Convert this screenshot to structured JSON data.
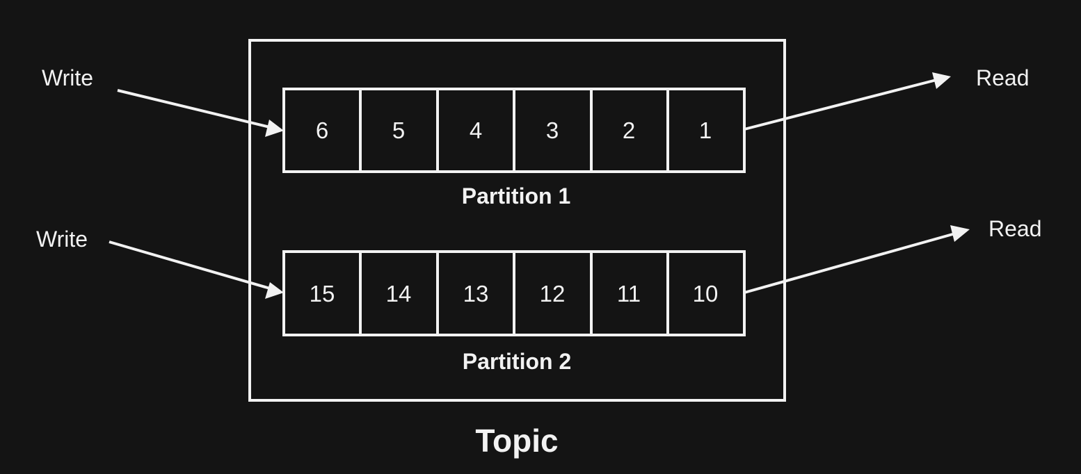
{
  "topic": {
    "title": "Topic"
  },
  "partitions": [
    {
      "title": "Partition 1",
      "cells": [
        "6",
        "5",
        "4",
        "3",
        "2",
        "1"
      ],
      "write_label": "Write",
      "read_label": "Read"
    },
    {
      "title": "Partition 2",
      "cells": [
        "15",
        "14",
        "13",
        "12",
        "11",
        "10"
      ],
      "write_label": "Write",
      "read_label": "Read"
    }
  ],
  "colors": {
    "background": "#141414",
    "stroke": "#f2f2f2",
    "text": "#f2f2f2"
  }
}
